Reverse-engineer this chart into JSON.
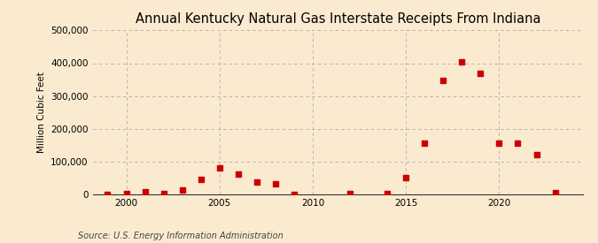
{
  "title": "Annual Kentucky Natural Gas Interstate Receipts From Indiana",
  "ylabel": "Million Cubic Feet",
  "source": "Source: U.S. Energy Information Administration",
  "background_color": "#faebd0",
  "plot_background_color": "#faebd0",
  "marker_color": "#cc0000",
  "marker_size": 4,
  "years": [
    1999,
    2000,
    2001,
    2002,
    2003,
    2004,
    2005,
    2006,
    2007,
    2008,
    2009,
    2012,
    2014,
    2015,
    2016,
    2017,
    2018,
    2019,
    2020,
    2021,
    2022,
    2023
  ],
  "values": [
    500,
    1500,
    7000,
    2000,
    13000,
    45000,
    80000,
    63000,
    38000,
    33000,
    500,
    1500,
    1500,
    52000,
    155000,
    347000,
    405000,
    370000,
    155000,
    155000,
    120000,
    5000
  ],
  "ylim": [
    0,
    500000
  ],
  "yticks": [
    0,
    100000,
    200000,
    300000,
    400000,
    500000
  ],
  "xlim": [
    1998.2,
    2024.5
  ],
  "xticks": [
    2000,
    2005,
    2010,
    2015,
    2020
  ],
  "grid_color": "#aaaaaa",
  "title_fontsize": 10.5,
  "label_fontsize": 7.5,
  "tick_fontsize": 7.5,
  "source_fontsize": 7
}
